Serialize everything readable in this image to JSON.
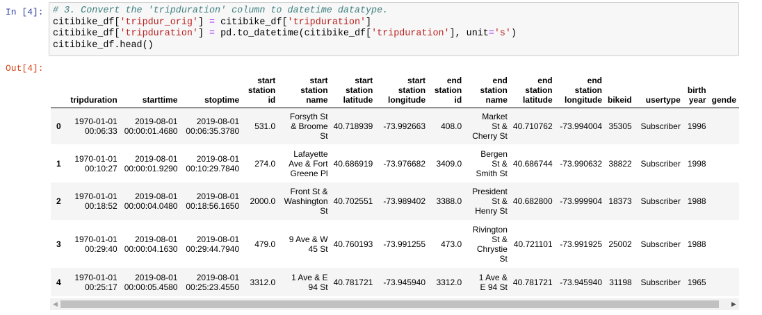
{
  "input_prompt": "In [4]:",
  "output_prompt": "Out[4]:",
  "code": {
    "line1_comment": "# 3. Convert the 'tripduration' column to datetime datatype.",
    "line2_a": "citibike_df[",
    "line2_s1": "'tripdur_orig'",
    "line2_b": "] ",
    "line2_op": "=",
    "line2_c": " citibike_df[",
    "line2_s2": "'tripduration'",
    "line2_d": "]",
    "line3_a": "citibike_df[",
    "line3_s1": "'tripduration'",
    "line3_b": "] ",
    "line3_op": "=",
    "line3_c": " pd.to_datetime(citibike_df[",
    "line3_s2": "'tripduration'",
    "line3_d": "], unit",
    "line3_op2": "=",
    "line3_s3": "'s'",
    "line3_e": ")",
    "line4": "citibike_df.head()"
  },
  "table": {
    "columns": [
      [
        "tripduration"
      ],
      [
        "starttime"
      ],
      [
        "stoptime"
      ],
      [
        "start",
        "station",
        "id"
      ],
      [
        "start",
        "station",
        "name"
      ],
      [
        "start",
        "station",
        "latitude"
      ],
      [
        "start",
        "station",
        "longitude"
      ],
      [
        "end",
        "station",
        "id"
      ],
      [
        "end",
        "station",
        "name"
      ],
      [
        "end",
        "station",
        "latitude"
      ],
      [
        "end",
        "station",
        "longitude"
      ],
      [
        "bikeid"
      ],
      [
        "usertype"
      ],
      [
        "birth",
        "year"
      ],
      [
        "gende"
      ]
    ],
    "rows": [
      {
        "index": "0",
        "cells": [
          [
            "1970-01-01",
            "00:06:33"
          ],
          [
            "2019-08-01",
            "00:00:01.4680"
          ],
          [
            "2019-08-01",
            "00:06:35.3780"
          ],
          [
            "531.0"
          ],
          [
            "Forsyth St",
            "& Broome",
            "St"
          ],
          [
            "40.718939"
          ],
          [
            "-73.992663"
          ],
          [
            "408.0"
          ],
          [
            "Market",
            "St &",
            "Cherry St"
          ],
          [
            "40.710762"
          ],
          [
            "-73.994004"
          ],
          [
            "35305"
          ],
          [
            "Subscriber"
          ],
          [
            "1996"
          ],
          [
            ""
          ]
        ]
      },
      {
        "index": "1",
        "cells": [
          [
            "1970-01-01",
            "00:10:27"
          ],
          [
            "2019-08-01",
            "00:00:01.9290"
          ],
          [
            "2019-08-01",
            "00:10:29.7840"
          ],
          [
            "274.0"
          ],
          [
            "Lafayette",
            "Ave & Fort",
            "Greene Pl"
          ],
          [
            "40.686919"
          ],
          [
            "-73.976682"
          ],
          [
            "3409.0"
          ],
          [
            "Bergen",
            "St &",
            "Smith St"
          ],
          [
            "40.686744"
          ],
          [
            "-73.990632"
          ],
          [
            "38822"
          ],
          [
            "Subscriber"
          ],
          [
            "1998"
          ],
          [
            ""
          ]
        ]
      },
      {
        "index": "2",
        "cells": [
          [
            "1970-01-01",
            "00:18:52"
          ],
          [
            "2019-08-01",
            "00:00:04.0480"
          ],
          [
            "2019-08-01",
            "00:18:56.1650"
          ],
          [
            "2000.0"
          ],
          [
            "Front St &",
            "Washington",
            "St"
          ],
          [
            "40.702551"
          ],
          [
            "-73.989402"
          ],
          [
            "3388.0"
          ],
          [
            "President",
            "St &",
            "Henry St"
          ],
          [
            "40.682800"
          ],
          [
            "-73.999904"
          ],
          [
            "18373"
          ],
          [
            "Subscriber"
          ],
          [
            "1988"
          ],
          [
            ""
          ]
        ]
      },
      {
        "index": "3",
        "cells": [
          [
            "1970-01-01",
            "00:29:40"
          ],
          [
            "2019-08-01",
            "00:00:04.1630"
          ],
          [
            "2019-08-01",
            "00:29:44.7940"
          ],
          [
            "479.0"
          ],
          [
            "9 Ave & W",
            "45 St"
          ],
          [
            "40.760193"
          ],
          [
            "-73.991255"
          ],
          [
            "473.0"
          ],
          [
            "Rivington",
            "St &",
            "Chrystie",
            "St"
          ],
          [
            "40.721101"
          ],
          [
            "-73.991925"
          ],
          [
            "25002"
          ],
          [
            "Subscriber"
          ],
          [
            "1988"
          ],
          [
            ""
          ]
        ]
      },
      {
        "index": "4",
        "cells": [
          [
            "1970-01-01",
            "00:25:17"
          ],
          [
            "2019-08-01",
            "00:00:05.4580"
          ],
          [
            "2019-08-01",
            "00:25:23.4550"
          ],
          [
            "3312.0"
          ],
          [
            "1 Ave & E",
            "94 St"
          ],
          [
            "40.781721"
          ],
          [
            "-73.945940"
          ],
          [
            "3312.0"
          ],
          [
            "1 Ave &",
            "E 94 St"
          ],
          [
            "40.781721"
          ],
          [
            "-73.945940"
          ],
          [
            "31198"
          ],
          [
            "Subscriber"
          ],
          [
            "1965"
          ],
          [
            ""
          ]
        ]
      }
    ]
  },
  "scrollbar": {
    "left_arrow_icon": "chevron-left-icon",
    "right_arrow_icon": "chevron-right-icon"
  }
}
